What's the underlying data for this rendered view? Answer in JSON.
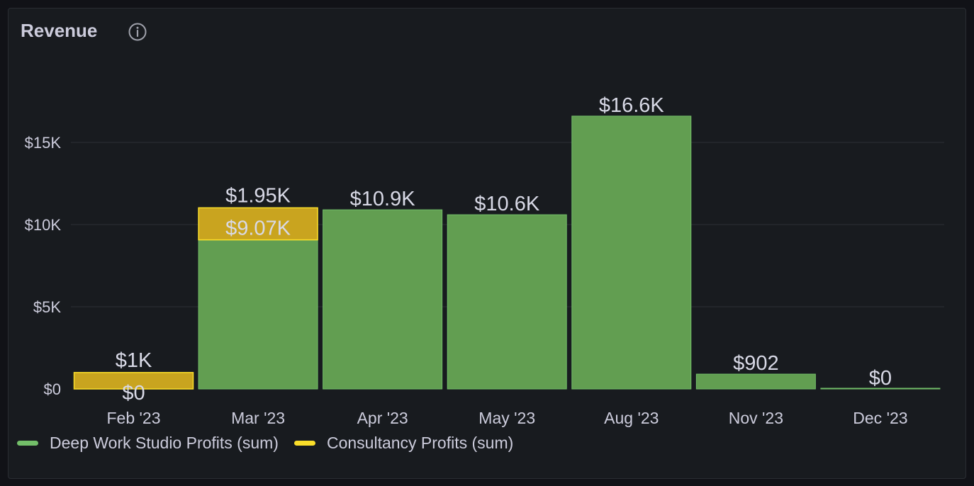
{
  "panel": {
    "title": "Revenue",
    "info_icon": "info-circle-icon"
  },
  "colors": {
    "series_1_fill": "#629e51",
    "series_1_stroke": "#73bf69",
    "series_2_fill": "#c9a41f",
    "series_2_stroke": "#fade2a",
    "grid": "#2c2f36",
    "text": "#ccccdc",
    "label": "#d8d9e6"
  },
  "chart_data": {
    "type": "bar",
    "stacked": true,
    "categories": [
      "Feb '23",
      "Mar '23",
      "Apr '23",
      "May '23",
      "Aug '23",
      "Nov '23",
      "Dec '23"
    ],
    "series": [
      {
        "name": "Deep Work Studio Profits (sum)",
        "values": [
          0,
          9070,
          10900,
          10600,
          16600,
          902,
          0
        ],
        "labels": [
          "$0",
          "$9.07K",
          "$10.9K",
          "$10.6K",
          "$16.6K",
          "$902",
          "$0"
        ]
      },
      {
        "name": "Consultancy Profits (sum)",
        "values": [
          1000,
          1950,
          0,
          0,
          0,
          0,
          0
        ],
        "labels": [
          "$1K",
          "$1.95K",
          null,
          null,
          null,
          null,
          null
        ]
      }
    ],
    "yticks": [
      {
        "value": 0,
        "label": "$0"
      },
      {
        "value": 5000,
        "label": "$5K"
      },
      {
        "value": 10000,
        "label": "$10K"
      },
      {
        "value": 15000,
        "label": "$15K"
      }
    ],
    "ylim": [
      0,
      20000
    ],
    "grid": true,
    "legend_position": "bottom-left"
  }
}
